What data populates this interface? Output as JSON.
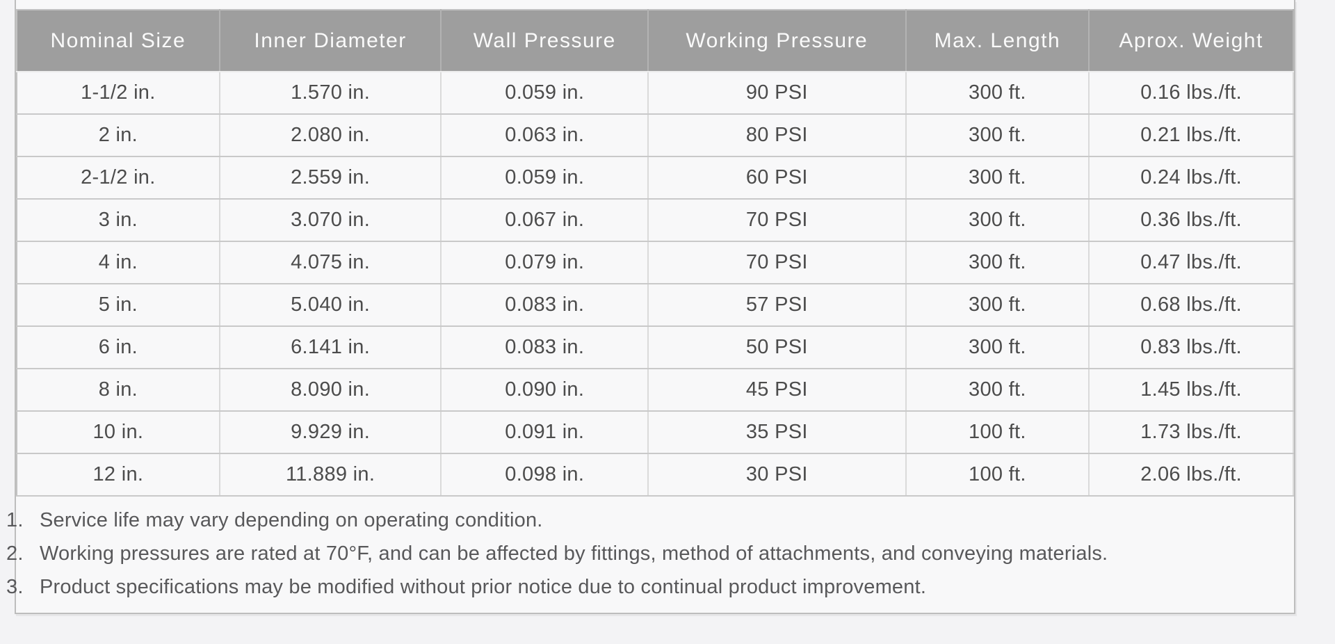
{
  "page": {
    "background": "#f3f3f5"
  },
  "panel": {
    "background": "#f8f8f9",
    "border_color": "#bdbdbd"
  },
  "table": {
    "header": {
      "background": "#9e9e9e",
      "text_color": "#fafafa"
    },
    "columns": [
      "Nominal Size",
      "Inner Diameter",
      "Wall Pressure",
      "Working Pressure",
      "Max. Length",
      "Aprox. Weight"
    ],
    "rows": [
      [
        "1-1/2 in.",
        "1.570 in.",
        "0.059 in.",
        "90 PSI",
        "300 ft.",
        "0.16 lbs./ft."
      ],
      [
        "2 in.",
        "2.080 in.",
        "0.063 in.",
        "80 PSI",
        "300 ft.",
        "0.21 lbs./ft."
      ],
      [
        "2-1/2 in.",
        "2.559 in.",
        "0.059 in.",
        "60 PSI",
        "300 ft.",
        "0.24 lbs./ft."
      ],
      [
        "3 in.",
        "3.070 in.",
        "0.067 in.",
        "70 PSI",
        "300 ft.",
        "0.36 lbs./ft."
      ],
      [
        "4 in.",
        "4.075 in.",
        "0.079 in.",
        "70 PSI",
        "300 ft.",
        "0.47 lbs./ft."
      ],
      [
        "5 in.",
        "5.040 in.",
        "0.083 in.",
        "57 PSI",
        "300 ft.",
        "0.68 lbs./ft."
      ],
      [
        "6 in.",
        "6.141 in.",
        "0.083 in.",
        "50 PSI",
        "300 ft.",
        "0.83 lbs./ft."
      ],
      [
        "8 in.",
        "8.090 in.",
        "0.090 in.",
        "45 PSI",
        "300 ft.",
        "1.45 lbs./ft."
      ],
      [
        "10 in.",
        "9.929 in.",
        "0.091 in.",
        "35 PSI",
        "100 ft.",
        "1.73 lbs./ft."
      ],
      [
        "12 in.",
        "11.889 in.",
        "0.098 in.",
        "30 PSI",
        "100 ft.",
        "2.06 lbs./ft."
      ]
    ]
  },
  "notes": [
    {
      "number": "1.",
      "text": "Service life may vary depending on operating condition."
    },
    {
      "number": "2.",
      "text": "Working pressures are rated at 70°F, and can be affected by fittings, method of attachments, and conveying materials."
    },
    {
      "number": "3.",
      "text": "Product specifications may be modified without prior notice due to continual product improvement."
    }
  ]
}
